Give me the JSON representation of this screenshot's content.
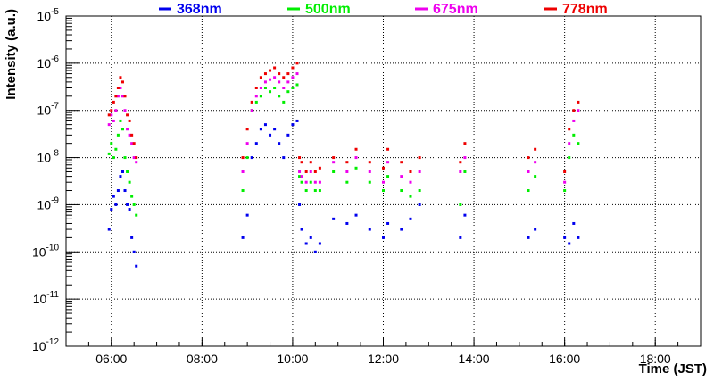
{
  "chart_data": {
    "type": "scatter",
    "title": "",
    "xlabel": "Time (JST)",
    "ylabel": "Intensity (a.u.)",
    "x_unit": "hours (JST)",
    "xlim": [
      5.0,
      19.0
    ],
    "ylim": [
      1e-12,
      1e-05
    ],
    "yscale": "log",
    "grid": true,
    "legend_position": "top",
    "x_ticks": [
      {
        "value": 6,
        "label": "06:00"
      },
      {
        "value": 8,
        "label": "08:00"
      },
      {
        "value": 10,
        "label": "10:00"
      },
      {
        "value": 12,
        "label": "12:00"
      },
      {
        "value": 14,
        "label": "14:00"
      },
      {
        "value": 16,
        "label": "16:00"
      },
      {
        "value": 18,
        "label": "18:00"
      }
    ],
    "y_ticks": [
      {
        "exp": -12,
        "base": "10",
        "sup": "-12"
      },
      {
        "exp": -11,
        "base": "10",
        "sup": "-11"
      },
      {
        "exp": -10,
        "base": "10",
        "sup": "-10"
      },
      {
        "exp": -9,
        "base": "10",
        "sup": "-9"
      },
      {
        "exp": -8,
        "base": "10",
        "sup": "-8"
      },
      {
        "exp": -7,
        "base": "10",
        "sup": "-7"
      },
      {
        "exp": -6,
        "base": "10",
        "sup": "-6"
      },
      {
        "exp": -5,
        "base": "10",
        "sup": "-5"
      }
    ],
    "series": [
      {
        "name": "368nm",
        "color": "#0000ee",
        "x": [
          5.95,
          6.0,
          6.05,
          6.1,
          6.15,
          6.2,
          6.25,
          6.3,
          6.35,
          6.4,
          6.45,
          6.5,
          6.55,
          8.9,
          9.0,
          9.1,
          9.2,
          9.3,
          9.4,
          9.5,
          9.6,
          9.7,
          9.8,
          9.9,
          10.0,
          10.1,
          10.15,
          10.2,
          10.3,
          10.4,
          10.5,
          10.6,
          10.9,
          11.2,
          11.4,
          11.7,
          12.0,
          12.1,
          12.4,
          12.6,
          12.8,
          13.7,
          13.8,
          15.2,
          15.35,
          16.0,
          16.1,
          16.2,
          16.3
        ],
        "y": [
          3e-10,
          8e-10,
          1.5e-09,
          1e-09,
          2e-09,
          4e-09,
          5e-09,
          2e-09,
          1e-09,
          8e-10,
          2e-10,
          1e-10,
          5e-11,
          2e-10,
          6e-10,
          1e-08,
          2e-08,
          4e-08,
          5e-08,
          3e-08,
          4e-08,
          2e-08,
          1e-08,
          3e-08,
          5e-08,
          6e-08,
          1e-09,
          3e-10,
          1.5e-10,
          2e-10,
          1e-10,
          1.5e-10,
          5e-10,
          4e-10,
          6e-10,
          3e-10,
          2e-10,
          4e-10,
          3e-10,
          5e-10,
          1e-09,
          2e-10,
          6e-10,
          2e-10,
          3e-10,
          2e-10,
          1.5e-10,
          4e-10,
          2e-10
        ]
      },
      {
        "name": "500nm",
        "color": "#00ee00",
        "x": [
          5.95,
          6.0,
          6.05,
          6.1,
          6.15,
          6.2,
          6.25,
          6.3,
          6.35,
          6.4,
          6.45,
          6.5,
          6.55,
          8.9,
          9.0,
          9.1,
          9.2,
          9.3,
          9.4,
          9.5,
          9.6,
          9.7,
          9.8,
          9.9,
          10.0,
          10.1,
          10.15,
          10.2,
          10.3,
          10.4,
          10.5,
          10.6,
          10.9,
          11.2,
          11.4,
          11.7,
          12.0,
          12.1,
          12.4,
          12.6,
          12.8,
          13.7,
          13.8,
          15.2,
          15.35,
          16.0,
          16.1,
          16.2,
          16.3
        ],
        "y": [
          1.2e-08,
          2e-08,
          1e-08,
          1.5e-08,
          3e-08,
          6e-08,
          4e-08,
          1e-08,
          5e-09,
          3e-09,
          1.5e-09,
          1e-09,
          6e-10,
          2e-09,
          1e-08,
          1e-07,
          1.5e-07,
          2e-07,
          3e-07,
          2.5e-07,
          3e-07,
          2e-07,
          1.5e-07,
          2.5e-07,
          3e-07,
          3.5e-07,
          4e-09,
          3e-09,
          2e-09,
          3e-09,
          2e-09,
          2e-09,
          5e-09,
          3e-09,
          6e-09,
          3e-09,
          2e-09,
          4e-09,
          2e-09,
          1.5e-09,
          2e-09,
          1e-09,
          5e-09,
          2e-09,
          4e-09,
          2e-09,
          1e-08,
          3e-08,
          2e-08
        ]
      },
      {
        "name": "675nm",
        "color": "#ee00ee",
        "x": [
          5.95,
          6.0,
          6.05,
          6.1,
          6.15,
          6.2,
          6.25,
          6.3,
          6.35,
          6.4,
          6.45,
          6.5,
          6.55,
          8.9,
          9.0,
          9.1,
          9.2,
          9.3,
          9.4,
          9.5,
          9.6,
          9.7,
          9.8,
          9.9,
          10.0,
          10.1,
          10.15,
          10.2,
          10.3,
          10.4,
          10.5,
          10.6,
          10.9,
          11.2,
          11.4,
          11.7,
          12.0,
          12.1,
          12.4,
          12.6,
          12.8,
          13.7,
          13.8,
          15.2,
          15.35,
          16.0,
          16.1,
          16.2,
          16.3
        ],
        "y": [
          5e-08,
          8e-08,
          6e-08,
          1e-07,
          2e-07,
          3e-07,
          2e-07,
          1e-07,
          4e-08,
          3e-08,
          2e-08,
          1e-08,
          8e-09,
          5e-09,
          2e-08,
          1e-07,
          2e-07,
          3e-07,
          4e-07,
          4.5e-07,
          5e-07,
          4e-07,
          3e-07,
          4e-07,
          5e-07,
          6e-07,
          5e-09,
          4e-09,
          3e-09,
          5e-09,
          3e-09,
          3e-09,
          8e-09,
          5e-09,
          1e-08,
          5e-09,
          3e-09,
          8e-09,
          4e-09,
          3e-09,
          5e-09,
          5e-09,
          1e-08,
          5e-09,
          8e-09,
          3e-09,
          2e-08,
          6e-08,
          1e-07
        ]
      },
      {
        "name": "778nm",
        "color": "#ee0000",
        "x": [
          5.95,
          6.0,
          6.05,
          6.1,
          6.15,
          6.2,
          6.25,
          6.3,
          6.35,
          6.4,
          6.45,
          6.5,
          6.55,
          8.9,
          9.0,
          9.1,
          9.2,
          9.3,
          9.4,
          9.5,
          9.6,
          9.7,
          9.8,
          9.9,
          10.0,
          10.1,
          10.15,
          10.2,
          10.3,
          10.4,
          10.5,
          10.6,
          10.9,
          11.2,
          11.4,
          11.7,
          12.0,
          12.1,
          12.4,
          12.6,
          12.8,
          13.7,
          13.8,
          15.2,
          15.35,
          16.0,
          16.1,
          16.2,
          16.3
        ],
        "y": [
          8e-08,
          1e-07,
          1.5e-07,
          2e-07,
          3e-07,
          5e-07,
          4e-07,
          2e-07,
          8e-08,
          6e-08,
          3e-08,
          2e-08,
          1e-08,
          1e-08,
          4e-08,
          1.5e-07,
          3e-07,
          5e-07,
          6e-07,
          7e-07,
          8e-07,
          6e-07,
          5e-07,
          6e-07,
          8e-07,
          1e-06,
          1e-08,
          8e-09,
          5e-09,
          8e-09,
          5e-09,
          6e-09,
          1e-08,
          8e-09,
          1.5e-08,
          8e-09,
          6e-09,
          1.5e-08,
          8e-09,
          5e-09,
          1e-08,
          8e-09,
          2e-08,
          1e-08,
          1.5e-08,
          5e-09,
          4e-08,
          1e-07,
          1.5e-07
        ]
      }
    ]
  }
}
